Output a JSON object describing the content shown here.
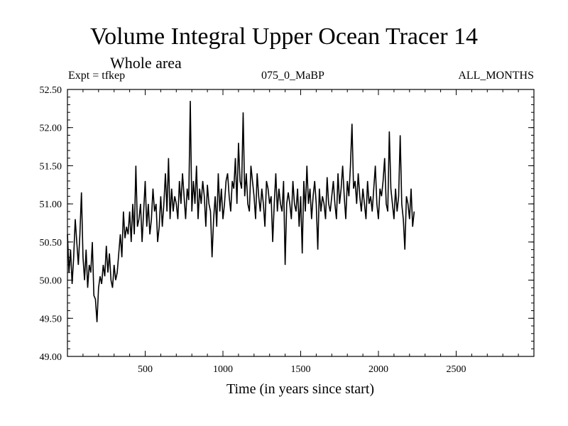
{
  "title": "Volume Integral Upper Ocean Tracer 14",
  "subtitle": "Whole area",
  "expt_label": "Expt = tfkep",
  "run_label": "075_0_MaBP",
  "months_label": "ALL_MONTHS",
  "chart_data": {
    "type": "line",
    "title": "Volume Integral Upper Ocean Tracer 14",
    "subtitle": "Whole area",
    "xlabel": "Time (in years since start)",
    "ylabel": "",
    "xlim": [
      0,
      3000
    ],
    "ylim": [
      49.0,
      52.5
    ],
    "x_ticks": [
      500,
      1000,
      1500,
      2000,
      2500
    ],
    "y_ticks": [
      49.0,
      49.5,
      50.0,
      50.5,
      51.0,
      51.5,
      52.0,
      52.5
    ],
    "y_tick_labels": [
      "49.00",
      "49.50",
      "50.00",
      "50.50",
      "51.00",
      "51.50",
      "52.00",
      "52.50"
    ],
    "grid": false,
    "series": [
      {
        "x_start": 0,
        "x_step": 10,
        "values": [
          50.6,
          50.1,
          50.4,
          49.95,
          50.3,
          50.8,
          50.5,
          50.2,
          50.6,
          51.15,
          50.3,
          50.0,
          50.4,
          49.9,
          50.2,
          50.1,
          50.5,
          49.8,
          49.75,
          49.45,
          49.9,
          50.05,
          49.95,
          50.2,
          50.05,
          50.45,
          50.1,
          50.35,
          50.0,
          49.9,
          50.2,
          50.0,
          50.1,
          50.35,
          50.6,
          50.3,
          50.9,
          50.55,
          50.7,
          50.6,
          50.9,
          50.5,
          51.0,
          50.6,
          51.5,
          50.7,
          50.8,
          51.0,
          50.5,
          50.9,
          51.3,
          50.7,
          51.0,
          50.6,
          50.8,
          51.2,
          50.9,
          51.0,
          50.5,
          50.7,
          51.1,
          50.7,
          51.0,
          51.4,
          50.9,
          51.6,
          50.8,
          51.2,
          50.9,
          51.1,
          51.0,
          50.8,
          51.3,
          51.0,
          51.4,
          51.1,
          50.8,
          51.2,
          51.05,
          52.35,
          50.9,
          51.3,
          51.0,
          51.5,
          50.8,
          51.2,
          51.0,
          51.3,
          51.1,
          50.7,
          51.25,
          51.0,
          50.9,
          50.3,
          50.8,
          51.1,
          50.7,
          51.4,
          50.9,
          51.2,
          50.8,
          51.0,
          51.3,
          51.4,
          51.1,
          50.9,
          51.3,
          51.2,
          51.6,
          51.0,
          51.8,
          51.3,
          51.2,
          52.2,
          51.1,
          51.4,
          51.0,
          50.9,
          51.5,
          51.3,
          51.1,
          50.8,
          51.4,
          51.1,
          50.9,
          51.2,
          51.0,
          50.7,
          51.3,
          51.2,
          51.0,
          51.1,
          50.5,
          51.0,
          51.4,
          50.9,
          51.2,
          51.0,
          50.9,
          51.3,
          50.2,
          51.0,
          51.15,
          51.0,
          50.8,
          51.3,
          51.0,
          50.9,
          51.2,
          50.7,
          51.1,
          50.35,
          51.3,
          50.9,
          51.5,
          51.0,
          51.2,
          50.8,
          51.1,
          51.3,
          51.0,
          50.4,
          51.2,
          50.9,
          51.1,
          51.0,
          50.8,
          51.35,
          51.0,
          50.9,
          51.1,
          51.3,
          51.0,
          50.8,
          51.4,
          51.0,
          51.2,
          51.5,
          51.1,
          50.8,
          51.3,
          51.1,
          51.5,
          52.05,
          51.2,
          51.3,
          51.0,
          51.4,
          51.1,
          50.9,
          51.2,
          51.0,
          50.8,
          51.3,
          51.0,
          51.1,
          50.9,
          51.2,
          51.5,
          51.0,
          50.8,
          51.2,
          51.1,
          51.3,
          51.6,
          51.0,
          50.9,
          51.95,
          51.2,
          51.0,
          50.8,
          51.2,
          50.9,
          51.1,
          51.9,
          51.0,
          50.8,
          50.4,
          51.1,
          51.0,
          50.8,
          51.2,
          50.7,
          50.9
        ]
      }
    ]
  }
}
